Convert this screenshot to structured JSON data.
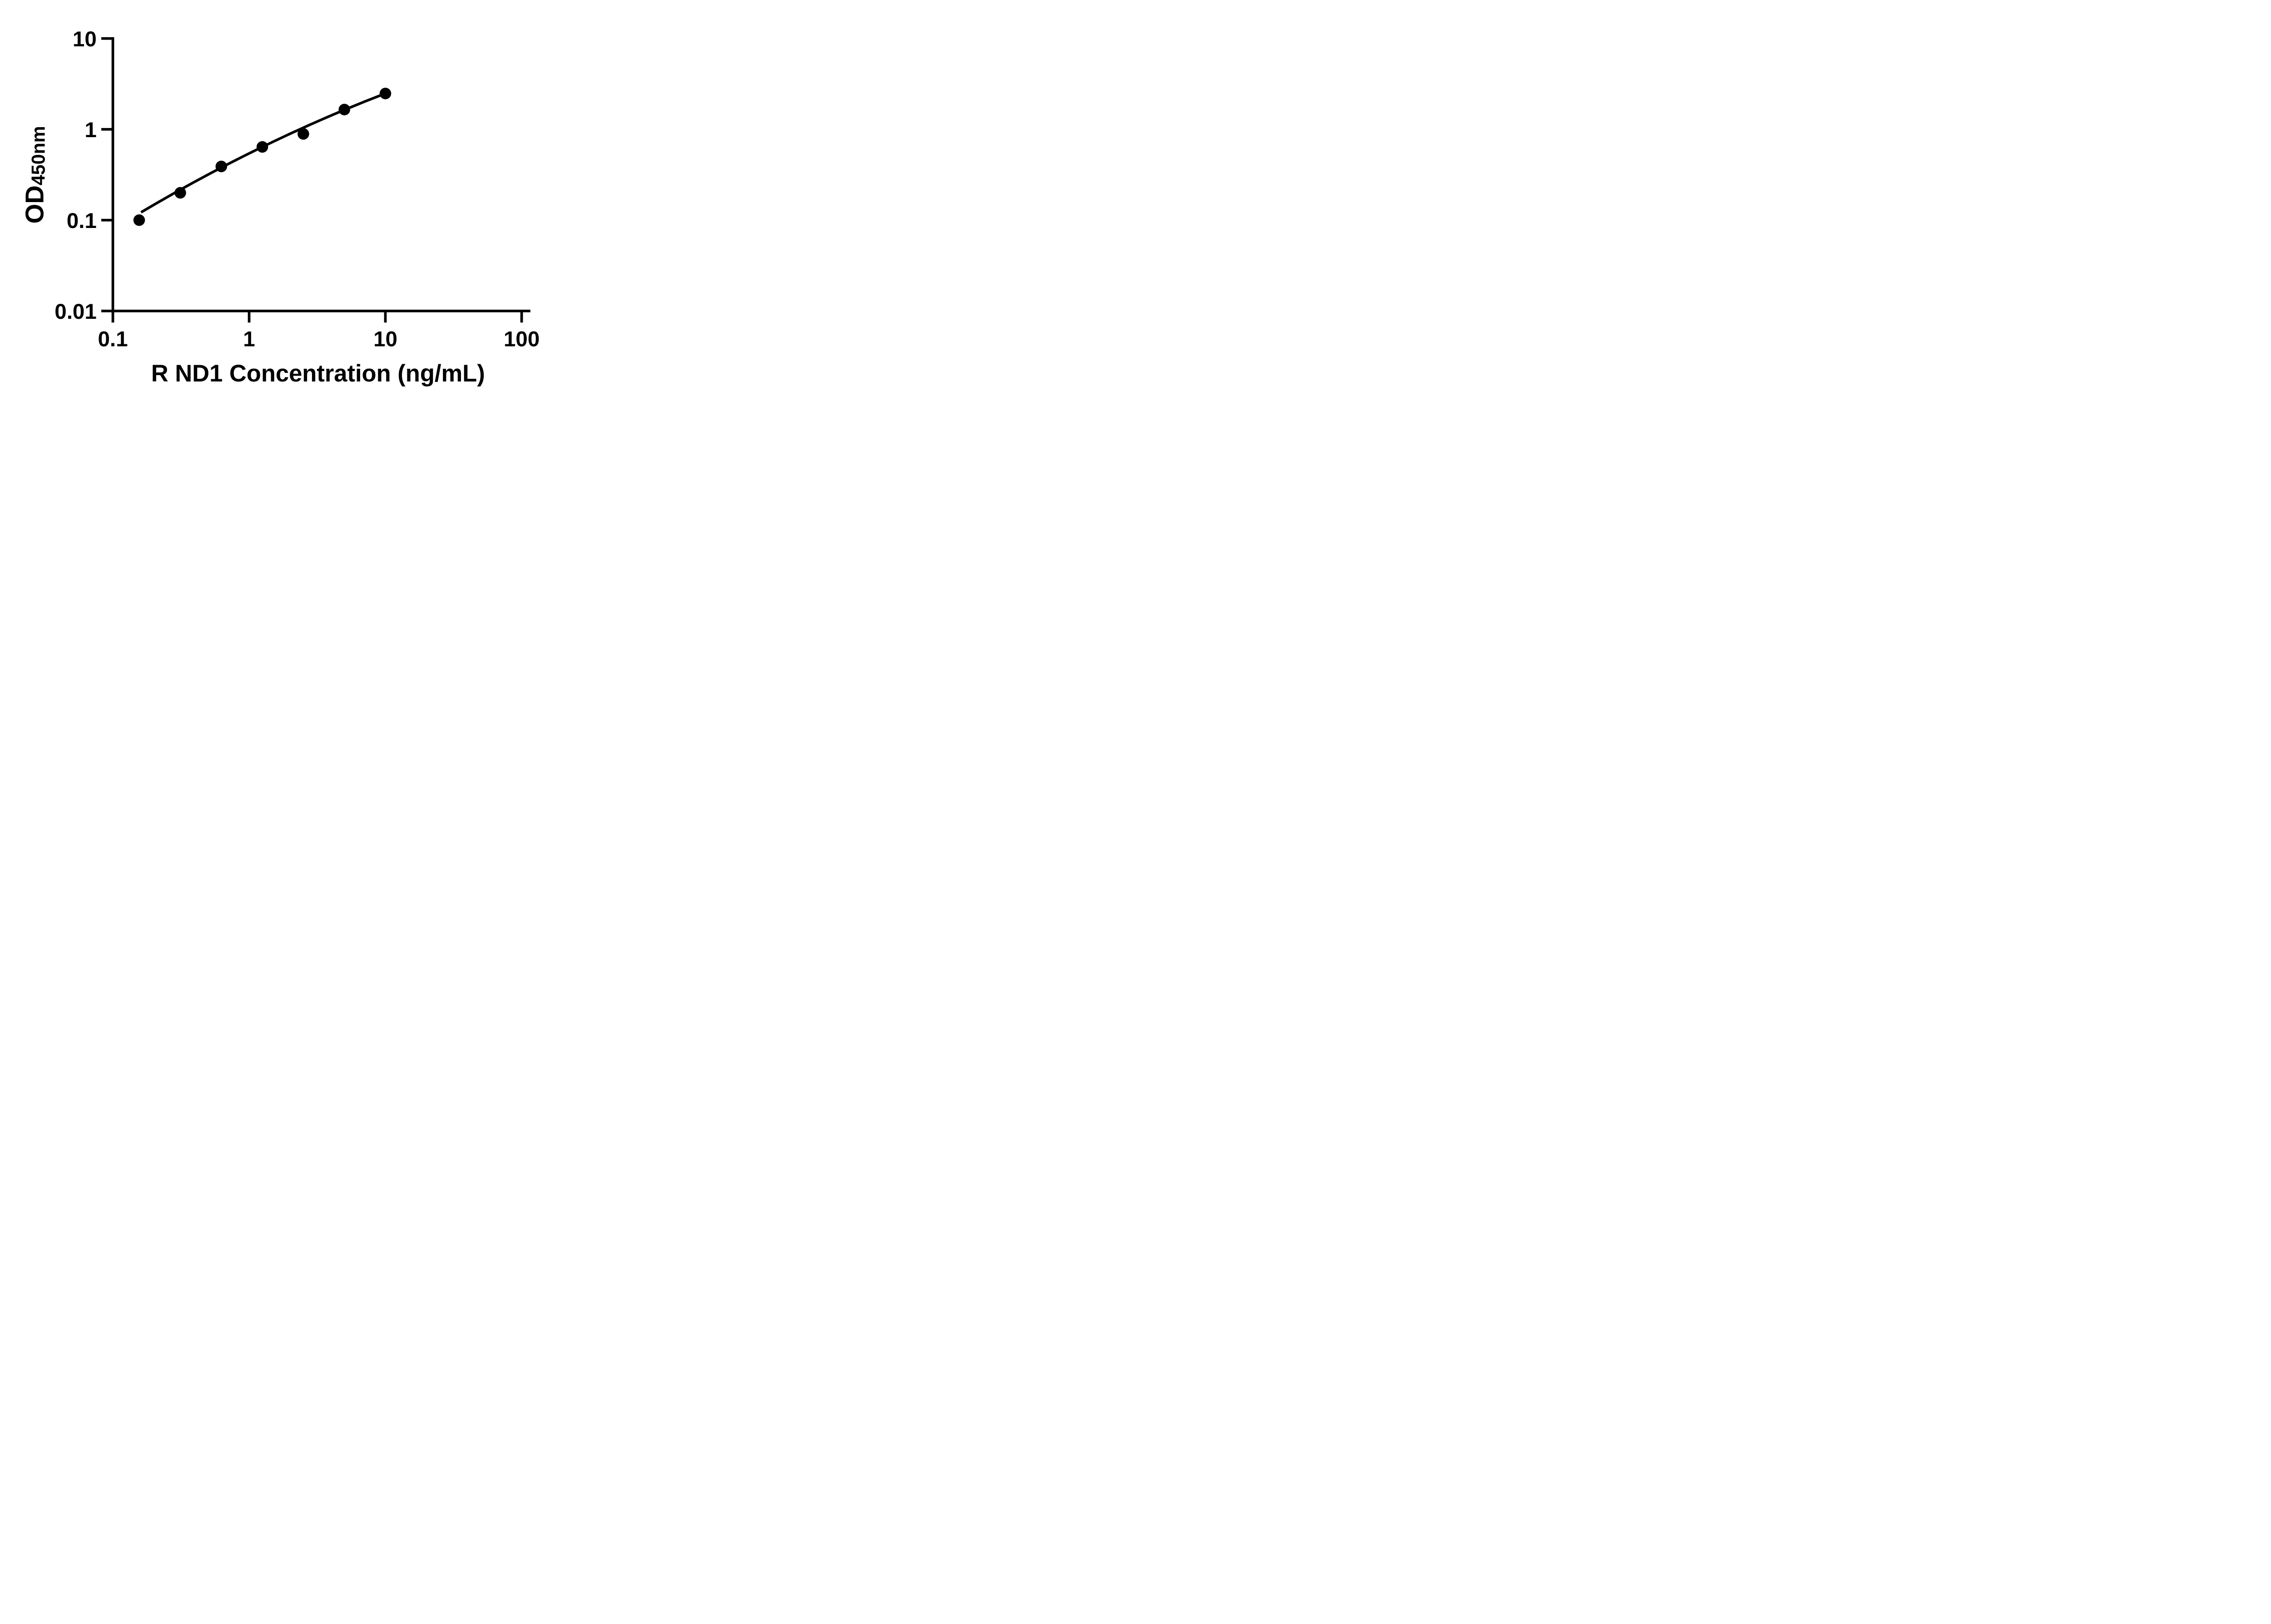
{
  "chart_data": {
    "type": "scatter",
    "title": "",
    "xlabel": "R ND1 Concentration (ng/mL)",
    "ylabel": "OD450nm",
    "ylabel_main": "OD",
    "ylabel_sub": "450nm",
    "x_scale": "log",
    "y_scale": "log",
    "xlim": [
      0.1,
      100
    ],
    "ylim": [
      0.01,
      10
    ],
    "x_ticks": [
      0.1,
      1,
      10,
      100
    ],
    "x_tick_labels": [
      "0.1",
      "1",
      "10",
      "100"
    ],
    "y_ticks": [
      10,
      1,
      0.1,
      0.01
    ],
    "y_tick_labels": [
      "10",
      "1",
      "0.1",
      "0.01"
    ],
    "grid": false,
    "legend": null,
    "marker_color": "#000000",
    "line_color": "#000000",
    "axis_color": "#000000",
    "background": "#ffffff",
    "points": [
      {
        "x": 0.156,
        "y": 0.1
      },
      {
        "x": 0.3125,
        "y": 0.2
      },
      {
        "x": 0.625,
        "y": 0.39
      },
      {
        "x": 1.25,
        "y": 0.64
      },
      {
        "x": 2.5,
        "y": 0.89
      },
      {
        "x": 5,
        "y": 1.65
      },
      {
        "x": 10,
        "y": 2.48
      }
    ],
    "trend_line": {
      "type": "power-fit",
      "x_start": 0.161,
      "y_start": 0.122,
      "x_mid": 1.25,
      "y_mid": 0.64,
      "x_end": 10,
      "y_end": 2.48
    }
  }
}
